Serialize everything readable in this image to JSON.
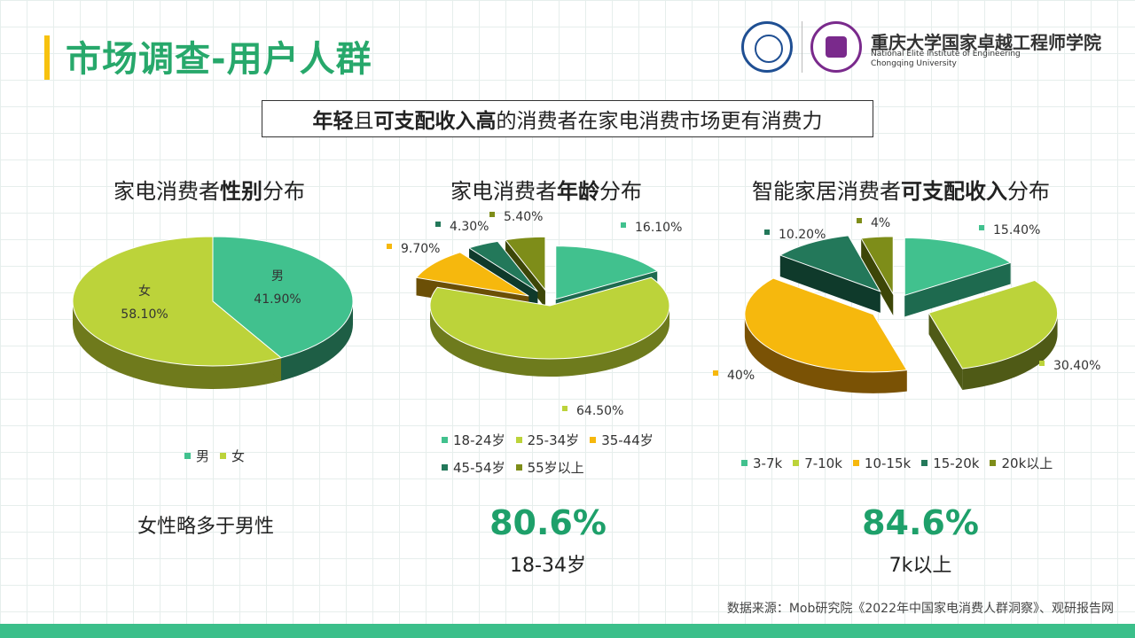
{
  "header": {
    "title": "市场调查-用户人群",
    "institute_cn": "重庆大学国家卓越工程师学院",
    "institute_en_line1": "National Elite Institute of Engineering",
    "institute_en_line2": "Chongqing University"
  },
  "headline": {
    "part1_bold": "年轻",
    "part2": "且",
    "part3_bold": "可支配收入高",
    "part4": "的消费者在家电消费市场更有消费力"
  },
  "chart_titles": {
    "gender": {
      "pre": "家电消费者",
      "bold": "性别",
      "post": "分布"
    },
    "age": {
      "pre": "家电消费者",
      "bold": "年龄",
      "post": "分布"
    },
    "income": {
      "pre": "智能家居消费者",
      "bold": "可支配收入",
      "post": "分布"
    }
  },
  "chart_data": [
    {
      "type": "pie",
      "id": "gender",
      "categories": [
        "男",
        "女"
      ],
      "values": [
        41.9,
        58.1
      ],
      "value_labels": [
        "41.90%",
        "58.10%"
      ],
      "colors": [
        "#41c18e",
        "#bcd33a"
      ],
      "side_colors": [
        "#1e5e45",
        "#6f7a1c"
      ],
      "legend_position": "bottom"
    },
    {
      "type": "pie",
      "id": "age",
      "categories": [
        "18-24岁",
        "25-34岁",
        "35-44岁",
        "45-54岁",
        "55岁以上"
      ],
      "values": [
        16.1,
        64.5,
        9.7,
        4.3,
        5.4
      ],
      "value_labels": [
        "16.10%",
        "64.50%",
        "9.70%",
        "4.30%",
        "5.40%"
      ],
      "colors": [
        "#41c18e",
        "#bcd33a",
        "#f6b80d",
        "#23785a",
        "#7e8d19"
      ],
      "side_colors": [
        "#1e6a4f",
        "#6e7b1d",
        "#6b4f06",
        "#0f3a2b",
        "#3d4608"
      ],
      "legend_position": "bottom"
    },
    {
      "type": "pie",
      "id": "income",
      "categories": [
        "3-7k",
        "7-10k",
        "10-15k",
        "15-20k",
        "20k以上"
      ],
      "values": [
        15.4,
        30.4,
        40,
        10.2,
        4
      ],
      "value_labels": [
        "15.40%",
        "30.40%",
        "40%",
        "10.20%",
        "4%"
      ],
      "colors": [
        "#41c18e",
        "#bcd33a",
        "#f6b80d",
        "#23785a",
        "#7e8d19"
      ],
      "side_colors": [
        "#1e6a4f",
        "#4f5a16",
        "#7a5205",
        "#0f3a2b",
        "#3d4608"
      ],
      "legend_position": "bottom"
    }
  ],
  "notes": {
    "gender": "女性略多于男性",
    "age_stat": "80.6%",
    "age_sub": "18-34岁",
    "income_stat": "84.6%",
    "income_sub": "7k以上"
  },
  "source": "数据来源：Mob研究院《2022年中国家电消费人群洞察》、观研报告网",
  "colors": {
    "title_green": "#27a86b",
    "accent_yellow": "#f7c20f",
    "footer_green": "#3bbf8a",
    "stat_green": "#1ea06a"
  }
}
